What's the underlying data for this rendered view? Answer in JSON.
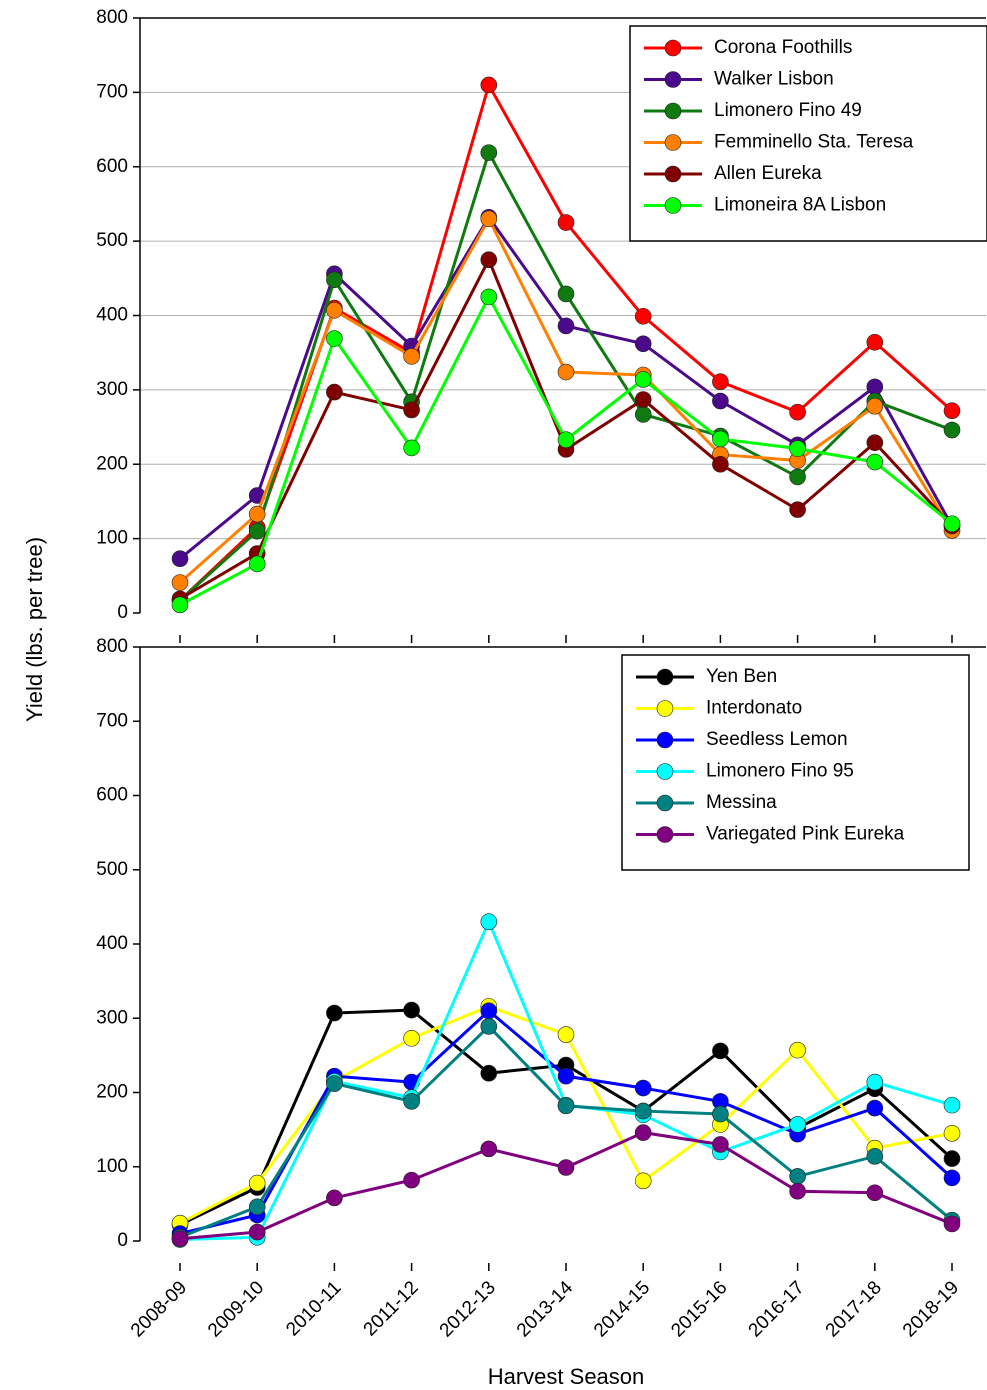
{
  "chart_data": [
    {
      "type": "line",
      "ylabel": "Yield (lbs. per tree)",
      "ylim": [
        0,
        800
      ],
      "yticks": [
        0,
        100,
        200,
        300,
        400,
        500,
        600,
        700,
        800
      ],
      "grid": true,
      "legend": "upper right",
      "series": [
        {
          "name": "Corona Foothills",
          "color": "#ff0000",
          "values": [
            17,
            115,
            410,
            350,
            710,
            525,
            399,
            311,
            270,
            364,
            272
          ]
        },
        {
          "name": "Walker Lisbon",
          "color": "#4b0a8c",
          "values": [
            73,
            158,
            456,
            359,
            532,
            386,
            362,
            285,
            226,
            304,
            117
          ]
        },
        {
          "name": "Limonero Fino 49",
          "color": "#0f7a0f",
          "values": [
            17,
            110,
            448,
            284,
            619,
            429,
            267,
            238,
            183,
            285,
            246
          ]
        },
        {
          "name": "Femminello Sta. Teresa",
          "color": "#ff8000",
          "values": [
            41,
            133,
            407,
            345,
            530,
            324,
            320,
            213,
            205,
            278,
            111
          ]
        },
        {
          "name": "Allen Eureka",
          "color": "#800000",
          "values": [
            19,
            80,
            297,
            273,
            475,
            220,
            287,
            200,
            139,
            229,
            117
          ]
        },
        {
          "name": "Limoneira 8A Lisbon",
          "color": "#00ff00",
          "values": [
            11,
            66,
            369,
            222,
            425,
            233,
            314,
            234,
            221,
            203,
            120
          ]
        }
      ]
    },
    {
      "type": "line",
      "xlabel": "Harvest Season",
      "categories": [
        "2008-09",
        "2009-10",
        "2010-11",
        "2011-12",
        "2012-13",
        "2013-14",
        "2014-15",
        "2015-16",
        "2016-17",
        "2017-18",
        "2018-19"
      ],
      "ylim": [
        0,
        800
      ],
      "yticks": [
        0,
        100,
        200,
        300,
        400,
        500,
        600,
        700,
        800
      ],
      "grid": false,
      "legend": "upper right",
      "series": [
        {
          "name": "Yen Ben",
          "color": "#000000",
          "values": [
            22,
            72,
            307,
            311,
            226,
            237,
            175,
            256,
            152,
            205,
            111
          ]
        },
        {
          "name": "Interdonato",
          "color": "#ffff00",
          "values": [
            24,
            78,
            215,
            273,
            316,
            278,
            81,
            157,
            257,
            125,
            145
          ]
        },
        {
          "name": "Seedless Lemon",
          "color": "#0000ff",
          "values": [
            10,
            35,
            222,
            214,
            310,
            222,
            206,
            188,
            144,
            179,
            85
          ]
        },
        {
          "name": "Limonero Fino 95",
          "color": "#00ffff",
          "values": [
            2,
            5,
            215,
            193,
            430,
            183,
            170,
            120,
            157,
            214,
            183
          ]
        },
        {
          "name": "Messina",
          "color": "#008080",
          "values": [
            5,
            46,
            212,
            188,
            289,
            182,
            175,
            171,
            87,
            114,
            28
          ]
        },
        {
          "name": "Variegated Pink Eureka",
          "color": "#800080",
          "values": [
            3,
            12,
            58,
            82,
            124,
            99,
            146,
            130,
            67,
            65,
            23
          ]
        }
      ]
    }
  ]
}
